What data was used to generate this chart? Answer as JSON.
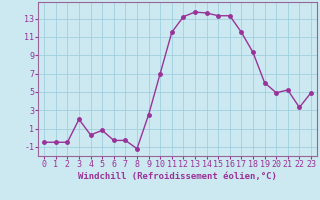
{
  "x": [
    0,
    1,
    2,
    3,
    4,
    5,
    6,
    7,
    8,
    9,
    10,
    11,
    12,
    13,
    14,
    15,
    16,
    17,
    18,
    19,
    20,
    21,
    22,
    23
  ],
  "y": [
    -0.5,
    -0.5,
    -0.5,
    2.0,
    0.3,
    0.8,
    -0.3,
    -0.3,
    -1.2,
    2.5,
    7.0,
    11.5,
    13.2,
    13.7,
    13.6,
    13.3,
    13.3,
    11.5,
    9.3,
    6.0,
    4.9,
    5.2,
    3.3,
    4.9
  ],
  "line_color": "#993399",
  "marker": "o",
  "markersize": 2.5,
  "linewidth": 1.0,
  "xlabel": "Windchill (Refroidissement éolien,°C)",
  "xlabel_fontsize": 6.5,
  "bg_color": "#cce8f0",
  "grid_color": "#99ccdd",
  "yticks": [
    -1,
    1,
    3,
    5,
    7,
    9,
    11,
    13
  ],
  "xticks": [
    0,
    1,
    2,
    3,
    4,
    5,
    6,
    7,
    8,
    9,
    10,
    11,
    12,
    13,
    14,
    15,
    16,
    17,
    18,
    19,
    20,
    21,
    22,
    23
  ],
  "ylim": [
    -2.0,
    14.8
  ],
  "xlim": [
    -0.5,
    23.5
  ],
  "tick_fontsize": 6.0,
  "spine_color": "#996699"
}
